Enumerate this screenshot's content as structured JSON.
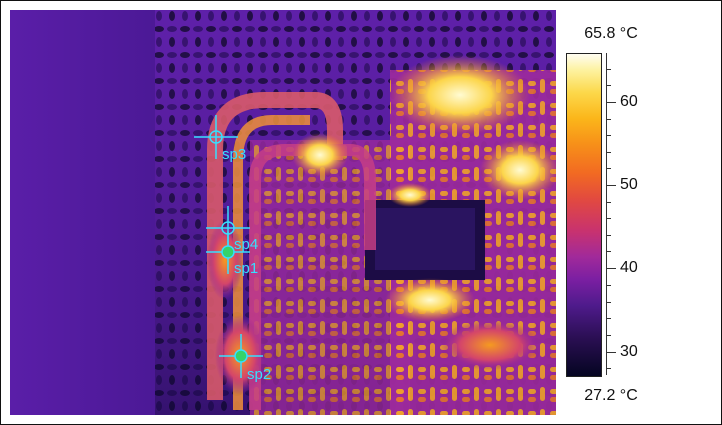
{
  "thermal_image": {
    "temperature_unit": "°C",
    "scale": {
      "max_label": "65.8 °C",
      "min_label": "27.2 °C",
      "max_value": 65.8,
      "min_value": 27.2,
      "tick_labels": [
        "60",
        "50",
        "40",
        "30"
      ]
    },
    "spots": [
      {
        "label": "sp1",
        "marker_fill": "#35d36a"
      },
      {
        "label": "sp2",
        "marker_fill": "#35d36a"
      },
      {
        "label": "sp3",
        "marker_fill": "none"
      },
      {
        "label": "sp4",
        "marker_fill": "none"
      }
    ],
    "colors": {
      "marker": "#37dfff",
      "background_purple": "#4b1b9b",
      "hot_yellow": "#fce05a"
    }
  }
}
